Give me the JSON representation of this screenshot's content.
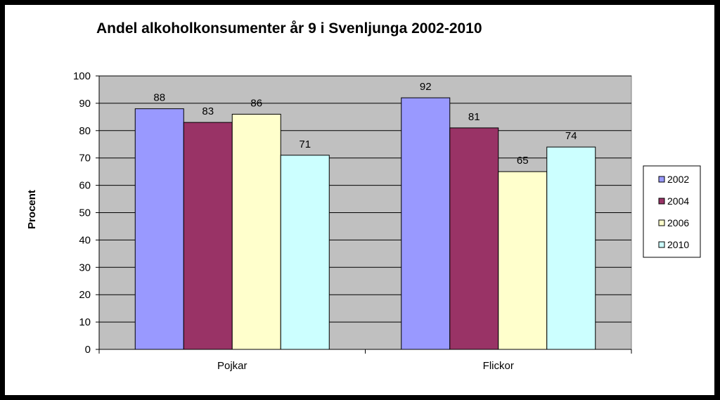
{
  "chart_data": {
    "type": "bar",
    "title": "Andel alkoholkonsumenter år 9 i Svenljunga 2002-2010",
    "xlabel": "",
    "ylabel": "Procent",
    "categories": [
      "Pojkar",
      "Flickor"
    ],
    "series": [
      {
        "name": "2002",
        "values": [
          88,
          92
        ],
        "color": "#9999ff"
      },
      {
        "name": "2004",
        "values": [
          83,
          81
        ],
        "color": "#993366"
      },
      {
        "name": "2006",
        "values": [
          86,
          65
        ],
        "color": "#ffffcc"
      },
      {
        "name": "2010",
        "values": [
          71,
          74
        ],
        "color": "#ccffff"
      }
    ],
    "ylim": [
      0,
      100
    ],
    "yticks": [
      0,
      10,
      20,
      30,
      40,
      50,
      60,
      70,
      80,
      90,
      100
    ],
    "grid": true,
    "plot_background": "#c0c0c0",
    "legend_position": "right",
    "data_labels": true
  }
}
